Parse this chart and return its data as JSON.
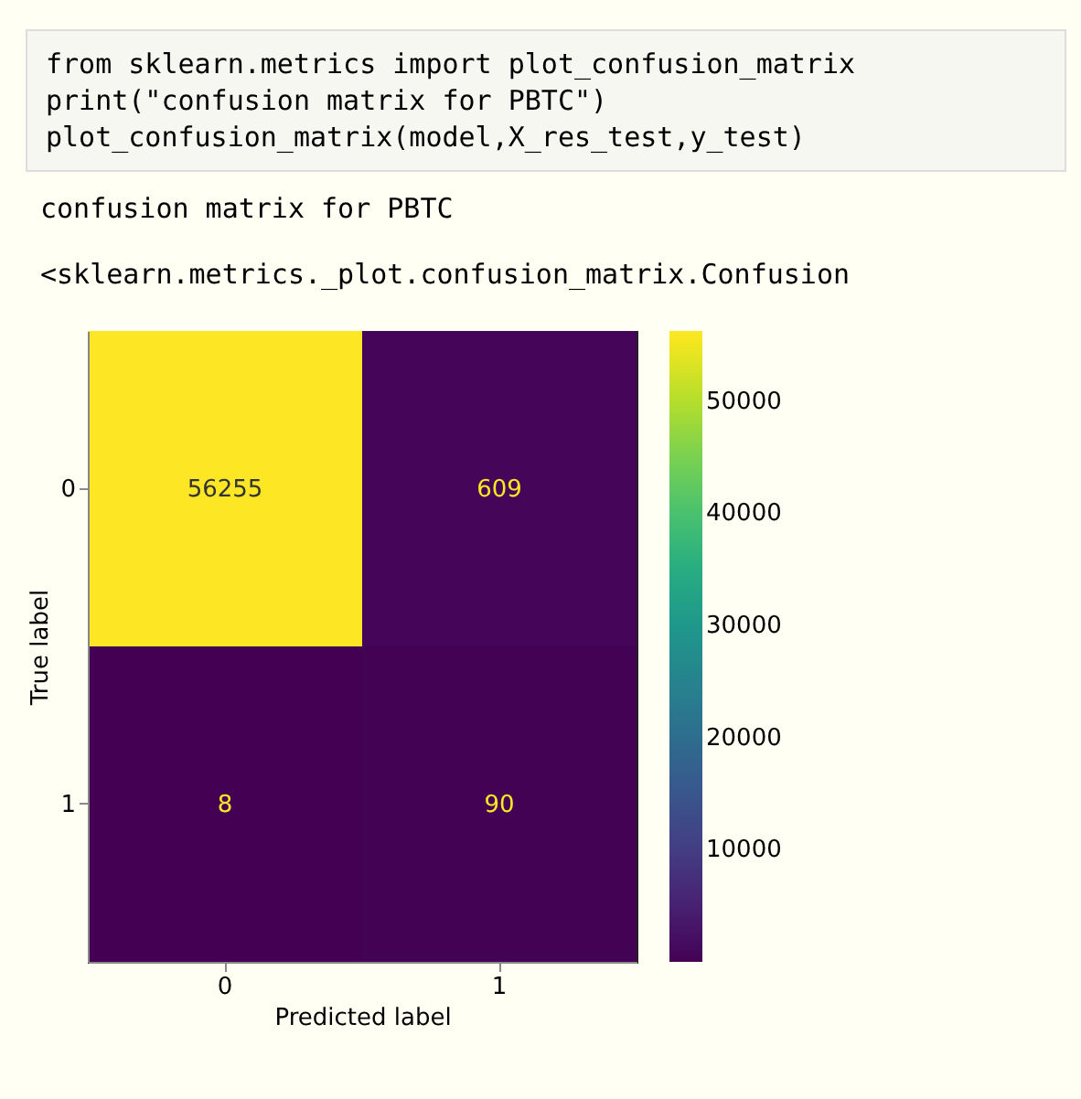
{
  "chart_data": {
    "type": "heatmap",
    "xlabel": "Predicted label",
    "ylabel": "True label",
    "annotations": [
      "from sklearn.metrics import plot_confusion_matrix",
      "print(\"confusion matrix for PBTC\")",
      "plot_confusion_matrix(model,X_res_test,y_test)",
      "confusion matrix for PBTC",
      "<sklearn.metrics._plot.confusion_matrix.Confusion"
    ],
    "categories": [
      "0",
      "1"
    ],
    "y_categories": [
      "0",
      "1"
    ],
    "cells": [
      [
        56255,
        609
      ],
      [
        8,
        90
      ]
    ],
    "data_labels": true,
    "clim": [
      8,
      56255
    ],
    "cticks": [
      10000,
      20000,
      30000,
      40000,
      50000
    ]
  }
}
